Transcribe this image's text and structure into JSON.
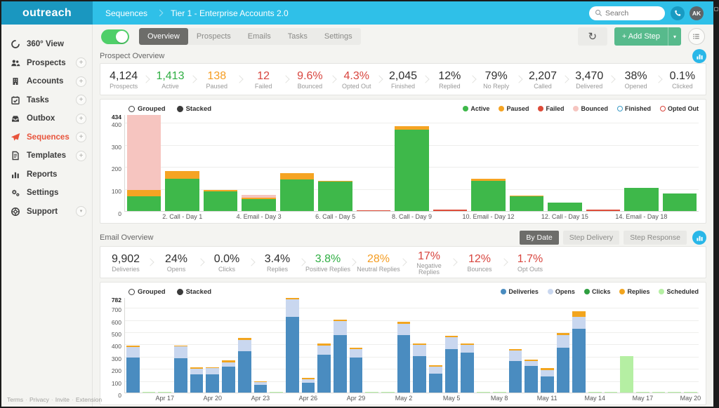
{
  "topbar": {
    "logo": "outreach",
    "section": "Sequences",
    "title": "Tier 1 - Enterprise Accounts 2.0",
    "search_placeholder": "Search",
    "avatar_initials": "AK"
  },
  "sidebar": {
    "items": [
      {
        "label": "360° View",
        "icon": "circle-360",
        "plus": false
      },
      {
        "label": "Prospects",
        "icon": "people",
        "plus": true
      },
      {
        "label": "Accounts",
        "icon": "building",
        "plus": true
      },
      {
        "label": "Tasks",
        "icon": "calendar-check",
        "plus": true
      },
      {
        "label": "Outbox",
        "icon": "outbox-tray",
        "plus": true
      },
      {
        "label": "Sequences",
        "icon": "paper-plane",
        "plus": true,
        "active": true
      },
      {
        "label": "Templates",
        "icon": "document",
        "plus": true
      },
      {
        "label": "Reports",
        "icon": "bar-chart",
        "plus": false
      },
      {
        "label": "Settings",
        "icon": "gears",
        "plus": false
      },
      {
        "label": "Support",
        "icon": "life-ring",
        "plus": false,
        "caret": true
      }
    ],
    "footer_links": [
      "Terms",
      "Privacy",
      "Invite",
      "Extension"
    ]
  },
  "toolbar": {
    "tabs": [
      {
        "label": "Overview",
        "active": true
      },
      {
        "label": "Prospects",
        "active": false
      },
      {
        "label": "Emails",
        "active": false
      },
      {
        "label": "Tasks",
        "active": false
      },
      {
        "label": "Settings",
        "active": false
      }
    ],
    "add_step_label": "+ Add Step"
  },
  "colors": {
    "dark": "#2f2f2f",
    "green": "#2fae43",
    "orange": "#f59d22",
    "red": "#d8453e",
    "accent_cyan": "#29b7e8",
    "accent_green": "#57ba8c",
    "active_orange": "#e8543c"
  },
  "chart_controls": {
    "grouped": "Grouped",
    "stacked": "Stacked"
  },
  "prospect_overview": {
    "title": "Prospect Overview",
    "stats": [
      {
        "value": "4,124",
        "label": "Prospects",
        "color": "dark"
      },
      {
        "value": "1,413",
        "label": "Active",
        "color": "green"
      },
      {
        "value": "138",
        "label": "Paused",
        "color": "orange"
      },
      {
        "value": "12",
        "label": "Failed",
        "color": "red"
      },
      {
        "value": "9.6%",
        "label": "Bounced",
        "color": "red"
      },
      {
        "value": "4.3%",
        "label": "Opted Out",
        "color": "red"
      },
      {
        "value": "2,045",
        "label": "Finished",
        "color": "dark"
      },
      {
        "value": "12%",
        "label": "Replied",
        "color": "dark"
      },
      {
        "value": "79%",
        "label": "No Reply",
        "color": "dark"
      },
      {
        "value": "2,207",
        "label": "Called",
        "color": "dark"
      },
      {
        "value": "3,470",
        "label": "Delivered",
        "color": "dark"
      },
      {
        "value": "38%",
        "label": "Opened",
        "color": "dark"
      },
      {
        "value": "0.1%",
        "label": "Clicked",
        "color": "dark"
      }
    ]
  },
  "email_overview": {
    "title": "Email Overview",
    "view_buttons": [
      {
        "label": "By Date",
        "active": true
      },
      {
        "label": "Step Delivery",
        "active": false
      },
      {
        "label": "Step Response",
        "active": false
      }
    ],
    "stats": [
      {
        "value": "9,902",
        "label": "Deliveries",
        "color": "dark"
      },
      {
        "value": "24%",
        "label": "Opens",
        "color": "dark"
      },
      {
        "value": "0.0%",
        "label": "Clicks",
        "color": "dark"
      },
      {
        "value": "3.4%",
        "label": "Replies",
        "color": "dark"
      },
      {
        "value": "3.8%",
        "label": "Positive Replies",
        "color": "green"
      },
      {
        "value": "28%",
        "label": "Neutral Replies",
        "color": "orange"
      },
      {
        "value": "17%",
        "label": "Negative Replies",
        "color": "red",
        "wrap": true
      },
      {
        "value": "12%",
        "label": "Bounces",
        "color": "red"
      },
      {
        "value": "1.7%",
        "label": "Opt Outs",
        "color": "red"
      }
    ]
  },
  "chart_data": [
    {
      "type": "bar",
      "name": "prospect-steps",
      "stacked": true,
      "title": "Prospect Overview",
      "ylim": [
        0,
        434
      ],
      "yticks": [
        0,
        100,
        200,
        300,
        400,
        434
      ],
      "grid": true,
      "legend_position": "top-right",
      "stack_order": [
        "active",
        "paused",
        "failed",
        "bounced"
      ],
      "series_colors": {
        "active": "#3eb84a",
        "paused": "#f5a423",
        "failed": "#dd4b39",
        "bounced": "#f6c5c0"
      },
      "legend": [
        {
          "label": "Active",
          "color": "#3eb84a",
          "style": "filled"
        },
        {
          "label": "Paused",
          "color": "#f5a423",
          "style": "filled"
        },
        {
          "label": "Failed",
          "color": "#dd4b39",
          "style": "filled"
        },
        {
          "label": "Bounced",
          "color": "#f6c5c0",
          "style": "filled"
        },
        {
          "label": "Finished",
          "color": "#3a9bc6",
          "style": "outline"
        },
        {
          "label": "Opted Out",
          "color": "#d9453c",
          "style": "outline"
        }
      ],
      "bars": [
        {
          "label": "",
          "values": {
            "active": 65,
            "paused": 30,
            "bounced": 339
          }
        },
        {
          "label": "2. Call - Day 1",
          "values": {
            "active": 145,
            "paused": 33
          }
        },
        {
          "label": "",
          "values": {
            "active": 88,
            "paused": 8
          }
        },
        {
          "label": "4. Email - Day 3",
          "values": {
            "active": 55,
            "paused": 6,
            "bounced": 12
          }
        },
        {
          "label": "",
          "values": {
            "active": 143,
            "paused": 28
          }
        },
        {
          "label": "6. Call - Day 5",
          "values": {
            "active": 132,
            "paused": 4
          }
        },
        {
          "label": "",
          "values": {
            "failed": 4
          }
        },
        {
          "label": "8. Call - Day 9",
          "values": {
            "active": 365,
            "paused": 15
          }
        },
        {
          "label": "",
          "values": {
            "failed": 5
          }
        },
        {
          "label": "10. Email - Day 12",
          "values": {
            "active": 135,
            "paused": 10
          }
        },
        {
          "label": "",
          "values": {
            "active": 65,
            "paused": 4
          }
        },
        {
          "label": "12. Call - Day 15",
          "values": {
            "active": 38
          }
        },
        {
          "label": "",
          "values": {
            "failed": 5
          }
        },
        {
          "label": "14. Email - Day 18",
          "values": {
            "active": 105
          }
        },
        {
          "label": "",
          "values": {
            "active": 78
          }
        }
      ]
    },
    {
      "type": "bar",
      "name": "email-daily",
      "stacked": true,
      "title": "Email Overview",
      "ylim": [
        0,
        782
      ],
      "yticks": [
        0,
        100,
        200,
        300,
        400,
        500,
        600,
        700,
        782
      ],
      "grid": true,
      "legend_position": "top-right",
      "stack_order": [
        "deliveries",
        "opens",
        "clicks",
        "replies",
        "scheduled"
      ],
      "series_colors": {
        "deliveries": "#4a8cc0",
        "opens": "#c9d7ef",
        "clicks": "#2e9e40",
        "replies": "#f2a51f",
        "scheduled": "#b5efa3"
      },
      "legend": [
        {
          "label": "Deliveries",
          "color": "#4a8cc0",
          "style": "filled"
        },
        {
          "label": "Opens",
          "color": "#c9d7ef",
          "style": "filled"
        },
        {
          "label": "Clicks",
          "color": "#2e9e40",
          "style": "filled"
        },
        {
          "label": "Replies",
          "color": "#f2a51f",
          "style": "filled"
        },
        {
          "label": "Scheduled",
          "color": "#b5efa3",
          "style": "filled"
        }
      ],
      "bars": [
        {
          "label": "",
          "values": {
            "deliveries": 290,
            "opens": 85,
            "replies": 8
          }
        },
        {
          "label": "",
          "values": {
            "scheduled": 4
          }
        },
        {
          "label": "Apr 17",
          "values": {
            "scheduled": 4
          }
        },
        {
          "label": "",
          "values": {
            "deliveries": 283,
            "opens": 95,
            "replies": 10
          }
        },
        {
          "label": "",
          "values": {
            "deliveries": 150,
            "opens": 47,
            "replies": 10
          }
        },
        {
          "label": "Apr 20",
          "values": {
            "deliveries": 152,
            "opens": 48,
            "replies": 10
          }
        },
        {
          "label": "",
          "values": {
            "deliveries": 215,
            "opens": 33,
            "replies": 15
          }
        },
        {
          "label": "",
          "values": {
            "deliveries": 338,
            "opens": 94,
            "replies": 15
          }
        },
        {
          "label": "Apr 23",
          "values": {
            "deliveries": 63,
            "opens": 22,
            "replies": 4
          }
        },
        {
          "label": "",
          "values": {
            "scheduled": 4
          }
        },
        {
          "label": "",
          "values": {
            "deliveries": 625,
            "opens": 145,
            "replies": 12
          }
        },
        {
          "label": "Apr 26",
          "values": {
            "deliveries": 78,
            "opens": 32,
            "replies": 10
          }
        },
        {
          "label": "",
          "values": {
            "deliveries": 310,
            "opens": 78,
            "replies": 15
          }
        },
        {
          "label": "",
          "values": {
            "deliveries": 470,
            "opens": 118,
            "replies": 12
          }
        },
        {
          "label": "Apr 29",
          "values": {
            "deliveries": 290,
            "opens": 65,
            "replies": 15
          }
        },
        {
          "label": "",
          "values": {
            "scheduled": 4
          }
        },
        {
          "label": "",
          "values": {
            "scheduled": 3
          }
        },
        {
          "label": "May 2",
          "values": {
            "deliveries": 470,
            "opens": 95,
            "replies": 15
          }
        },
        {
          "label": "",
          "values": {
            "deliveries": 300,
            "opens": 90,
            "replies": 10
          }
        },
        {
          "label": "",
          "values": {
            "deliveries": 155,
            "opens": 60,
            "replies": 10
          }
        },
        {
          "label": "May 5",
          "values": {
            "deliveries": 355,
            "opens": 100,
            "replies": 13
          }
        },
        {
          "label": "",
          "values": {
            "deliveries": 330,
            "opens": 60,
            "replies": 10
          }
        },
        {
          "label": "",
          "values": {
            "scheduled": 4
          }
        },
        {
          "label": "May 8",
          "values": {
            "scheduled": 3
          }
        },
        {
          "label": "",
          "values": {
            "deliveries": 260,
            "opens": 85,
            "replies": 13
          }
        },
        {
          "label": "",
          "values": {
            "deliveries": 220,
            "opens": 40,
            "replies": 10
          }
        },
        {
          "label": "May 11",
          "values": {
            "deliveries": 135,
            "opens": 50,
            "replies": 15
          }
        },
        {
          "label": "",
          "values": {
            "deliveries": 370,
            "opens": 100,
            "replies": 18
          }
        },
        {
          "label": "",
          "values": {
            "deliveries": 525,
            "opens": 95,
            "replies": 50
          }
        },
        {
          "label": "May 14",
          "values": {
            "scheduled": 3
          }
        },
        {
          "label": "",
          "values": {
            "scheduled": 2
          }
        },
        {
          "label": "",
          "values": {
            "scheduled": 300
          }
        },
        {
          "label": "May 17",
          "values": {
            "scheduled": 2
          }
        },
        {
          "label": "",
          "values": {
            "scheduled": 2
          }
        },
        {
          "label": "",
          "values": {
            "scheduled": 2
          }
        },
        {
          "label": "May 20",
          "values": {
            "scheduled": 2
          }
        }
      ]
    }
  ]
}
